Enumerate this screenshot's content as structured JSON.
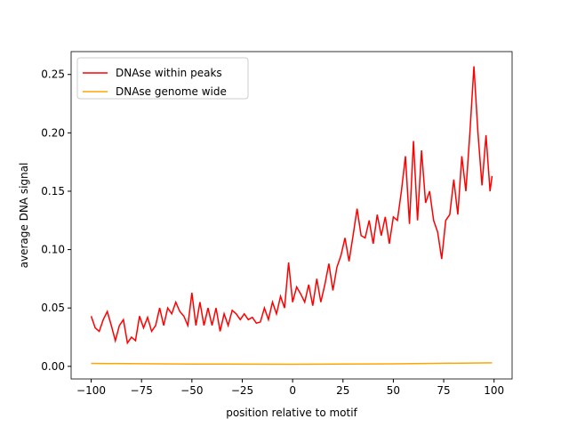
{
  "chart_data": {
    "type": "line",
    "xlabel": "position relative to motif",
    "ylabel": "average DNA signal",
    "legend": "upper left",
    "xlim": [
      -109.95,
      108.95
    ],
    "ylim": [
      -0.0108,
      0.2696
    ],
    "xticks": [
      {
        "value": -100,
        "label": "−100"
      },
      {
        "value": -75,
        "label": "−75"
      },
      {
        "value": -50,
        "label": "−50"
      },
      {
        "value": -25,
        "label": "−25"
      },
      0,
      25,
      50,
      75,
      100
    ],
    "yticks": [
      {
        "value": 0,
        "label": "0.00"
      },
      {
        "value": 0.05,
        "label": "0.05"
      },
      {
        "value": 0.1,
        "label": "0.10"
      },
      {
        "value": 0.15,
        "label": "0.15"
      },
      {
        "value": 0.2,
        "label": "0.20"
      },
      {
        "value": 0.25,
        "label": "0.25"
      }
    ],
    "series": [
      {
        "name": "DNAse within peaks",
        "color": "#ff0000",
        "x": [
          -100,
          -98,
          -96,
          -94,
          -92,
          -90,
          -88,
          -86,
          -84,
          -82,
          -80,
          -78,
          -76,
          -74,
          -72,
          -70,
          -68,
          -66,
          -64,
          -62,
          -60,
          -58,
          -56,
          -54,
          -52,
          -50,
          -48,
          -46,
          -44,
          -42,
          -40,
          -38,
          -36,
          -34,
          -32,
          -30,
          -28,
          -26,
          -24,
          -22,
          -20,
          -18,
          -16,
          -14,
          -12,
          -10,
          -8,
          -6,
          -4,
          -2,
          0,
          2,
          4,
          6,
          8,
          10,
          12,
          14,
          16,
          18,
          20,
          22,
          24,
          26,
          28,
          30,
          32,
          34,
          36,
          38,
          40,
          42,
          44,
          46,
          48,
          50,
          52,
          54,
          56,
          58,
          60,
          62,
          64,
          66,
          68,
          70,
          72,
          74,
          76,
          78,
          80,
          82,
          84,
          86,
          88,
          90,
          92,
          94,
          96,
          98,
          99
        ],
        "values": [
          0.043,
          0.033,
          0.03,
          0.04,
          0.047,
          0.035,
          0.022,
          0.035,
          0.04,
          0.02,
          0.025,
          0.022,
          0.043,
          0.033,
          0.042,
          0.03,
          0.035,
          0.05,
          0.035,
          0.05,
          0.045,
          0.055,
          0.047,
          0.043,
          0.035,
          0.063,
          0.035,
          0.055,
          0.035,
          0.05,
          0.035,
          0.05,
          0.03,
          0.045,
          0.035,
          0.048,
          0.045,
          0.04,
          0.045,
          0.04,
          0.042,
          0.037,
          0.038,
          0.05,
          0.04,
          0.055,
          0.045,
          0.06,
          0.05,
          0.089,
          0.055,
          0.068,
          0.062,
          0.055,
          0.07,
          0.052,
          0.075,
          0.055,
          0.07,
          0.088,
          0.065,
          0.085,
          0.095,
          0.11,
          0.09,
          0.112,
          0.135,
          0.112,
          0.11,
          0.125,
          0.105,
          0.13,
          0.112,
          0.128,
          0.105,
          0.128,
          0.125,
          0.15,
          0.18,
          0.122,
          0.193,
          0.125,
          0.185,
          0.14,
          0.15,
          0.125,
          0.115,
          0.092,
          0.125,
          0.13,
          0.16,
          0.13,
          0.18,
          0.15,
          0.2,
          0.257,
          0.2,
          0.155,
          0.198,
          0.15,
          0.163
        ]
      },
      {
        "name": "DNAse genome wide",
        "color": "#ffa500",
        "x": [
          -100,
          -50,
          0,
          50,
          99
        ],
        "values": [
          0.0025,
          0.002,
          0.0018,
          0.0022,
          0.003
        ]
      }
    ]
  }
}
